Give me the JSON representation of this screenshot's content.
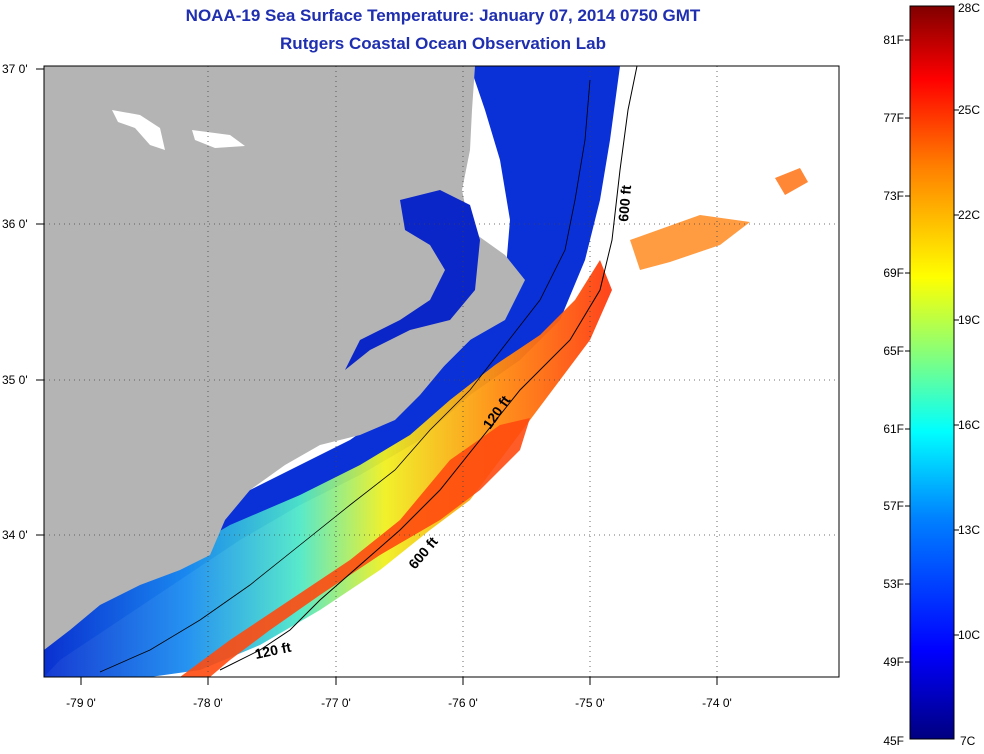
{
  "header": {
    "title": "NOAA-19 Sea Surface Temperature:  January 07, 2014 0750 GMT",
    "subtitle": "Rutgers Coastal Ocean Observation Lab"
  },
  "map": {
    "lon_labels": [
      "-79 0'",
      "-78 0'",
      "-77 0'",
      "-76 0'",
      "-75 0'",
      "-74 0'"
    ],
    "lat_labels": [
      "37 0'",
      "36 0'",
      "35 0'",
      "34 0'"
    ],
    "contour_labels": [
      "600 ft",
      "120 ft",
      "600 ft",
      "120 ft"
    ],
    "colors": {
      "land": "#b4b4b4",
      "cold": "#0a1fc8",
      "warm": "#ff3a10",
      "frame": "#000000"
    }
  },
  "colorbar": {
    "fahrenheit_labels": [
      "81F",
      "77F",
      "73F",
      "69F",
      "65F",
      "61F",
      "57F",
      "53F",
      "49F",
      "45F"
    ],
    "celsius_labels": [
      "28C",
      "25C",
      "22C",
      "19C",
      "16C",
      "13C",
      "10C",
      "7C"
    ],
    "stops": [
      "#000080",
      "#0000ff",
      "#0080ff",
      "#00ffff",
      "#80ff80",
      "#ffff00",
      "#ff8000",
      "#ff0000",
      "#800000"
    ]
  }
}
